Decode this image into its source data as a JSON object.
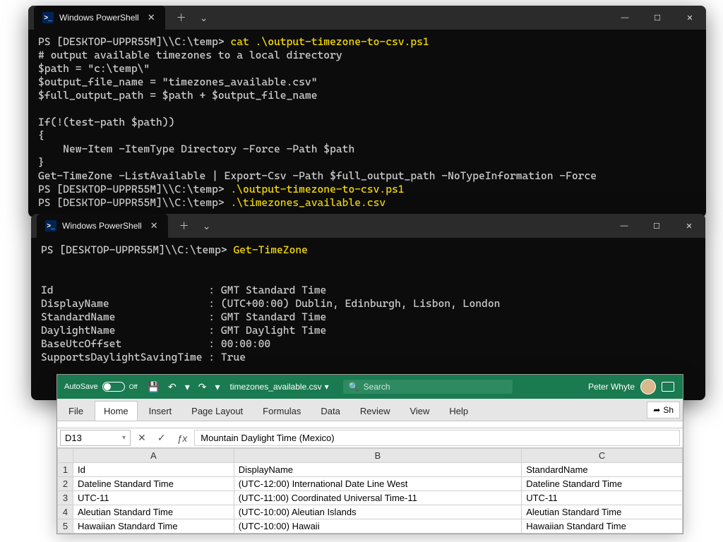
{
  "term1": {
    "tab_title": "Windows PowerShell",
    "prompt": "PS [DESKTOP-UPPR55M]\\\\C:\\temp>",
    "cmd_cat": "cat .\\output-timezone-to-csv.ps1",
    "script": [
      "# output available timezones to a local directory",
      "$path = \"c:\\temp\\\"",
      "$output_file_name = \"timezones_available.csv\"",
      "$full_output_path = $path + $output_file_name",
      "",
      "If(!(test-path $path))",
      "{",
      "    New-Item -ItemType Directory -Force -Path $path",
      "}",
      "Get-TimeZone -ListAvailable | Export-Csv -Path $full_output_path -NoTypeInformation -Force"
    ],
    "cmd_run": ".\\output-timezone-to-csv.ps1",
    "cmd_csv": ".\\timezones_available.csv"
  },
  "term2": {
    "tab_title": "Windows PowerShell",
    "prompt": "PS [DESKTOP-UPPR55M]\\\\C:\\temp>",
    "cmd": "Get-TimeZone",
    "out": [
      "",
      "",
      "Id                         : GMT Standard Time",
      "DisplayName                : (UTC+00:00) Dublin, Edinburgh, Lisbon, London",
      "StandardName               : GMT Standard Time",
      "DaylightName               : GMT Daylight Time",
      "BaseUtcOffset              : 00:00:00",
      "SupportsDaylightSavingTime : True"
    ]
  },
  "excel": {
    "autosave_label": "AutoSave",
    "autosave_state": "Off",
    "filename": "timezones_available.csv",
    "search_placeholder": "Search",
    "user_name": "Peter Whyte",
    "tabs": {
      "file": "File",
      "home": "Home",
      "insert": "Insert",
      "page_layout": "Page Layout",
      "formulas": "Formulas",
      "data": "Data",
      "review": "Review",
      "view": "View",
      "help": "Help"
    },
    "share_label": "Sh",
    "namebox": "D13",
    "formula": "Mountain Daylight Time (Mexico)",
    "columns": [
      "A",
      "B",
      "C"
    ],
    "rows": [
      {
        "n": "1",
        "a": "Id",
        "b": "DisplayName",
        "c": "StandardName"
      },
      {
        "n": "2",
        "a": "Dateline Standard Time",
        "b": "(UTC-12:00) International Date Line West",
        "c": "Dateline Standard Time"
      },
      {
        "n": "3",
        "a": "UTC-11",
        "b": "(UTC-11:00) Coordinated Universal Time-11",
        "c": "UTC-11"
      },
      {
        "n": "4",
        "a": "Aleutian Standard Time",
        "b": "(UTC-10:00) Aleutian Islands",
        "c": "Aleutian Standard Time"
      },
      {
        "n": "5",
        "a": "Hawaiian Standard Time",
        "b": "(UTC-10:00) Hawaii",
        "c": "Hawaiian Standard Time"
      }
    ]
  },
  "icons": {
    "min": "—",
    "max": "☐",
    "close": "✕",
    "plus": "＋",
    "chev": "⌄",
    "save": "💾",
    "undo": "↶",
    "redo": "↷",
    "drop": "▾",
    "search": "🔍",
    "fx_x": "✕",
    "fx_ck": "✓",
    "fx": "ƒx",
    "share": "➦",
    "ps": ">_"
  }
}
